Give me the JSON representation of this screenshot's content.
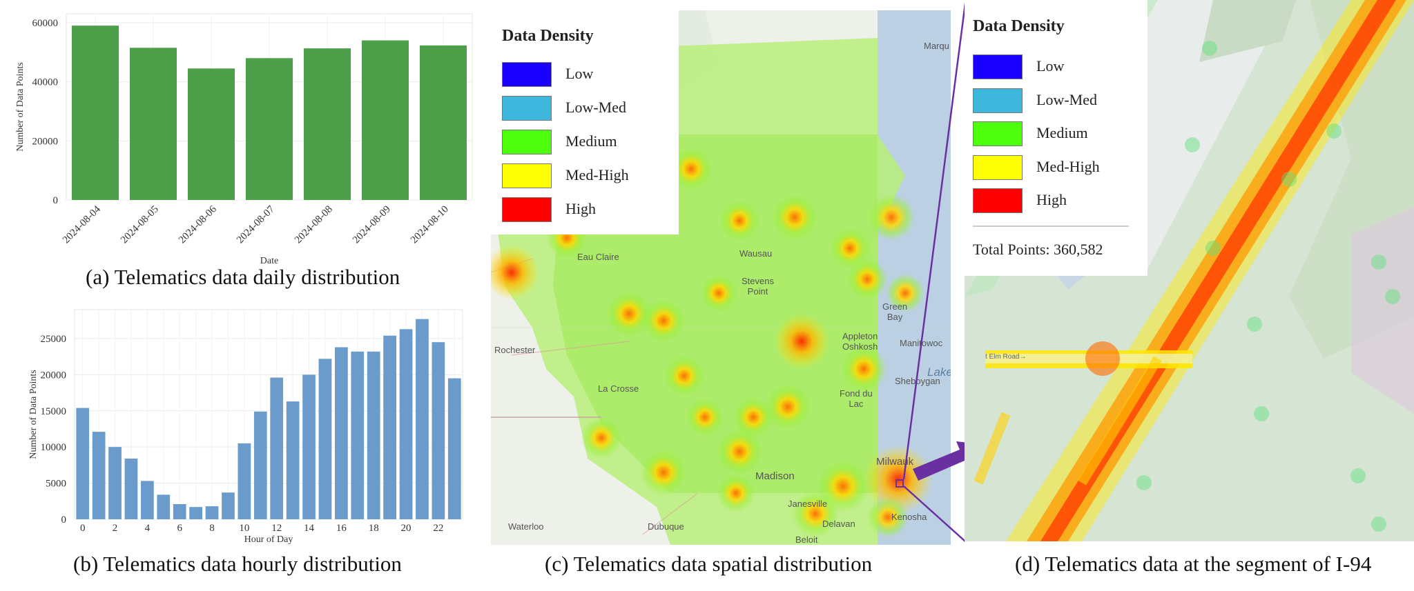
{
  "captions": {
    "a": "(a) Telematics data daily distribution",
    "b": "(b) Telematics data hourly distribution",
    "c": "(c) Telematics data spatial distribution",
    "d": "(d) Telematics data at the segment of I-94"
  },
  "chart_data": [
    {
      "type": "bar",
      "xlabel": "Date",
      "ylabel": "Number of Data Points",
      "categories": [
        "2024-08-04",
        "2024-08-05",
        "2024-08-06",
        "2024-08-07",
        "2024-08-08",
        "2024-08-09",
        "2024-08-10"
      ],
      "values": [
        59000,
        51500,
        44500,
        48000,
        51300,
        54000,
        52300
      ],
      "ylim": [
        0,
        63000
      ],
      "yticks": [
        "0",
        "20000",
        "40000",
        "60000"
      ],
      "color": "#4e9f4a",
      "grid": true
    },
    {
      "type": "bar",
      "xlabel": "Hour of Day",
      "ylabel": "Number of Data Points",
      "categories": [
        "0",
        "1",
        "2",
        "3",
        "4",
        "5",
        "6",
        "7",
        "8",
        "9",
        "10",
        "11",
        "12",
        "13",
        "14",
        "15",
        "16",
        "17",
        "18",
        "19",
        "20",
        "21",
        "22",
        "23"
      ],
      "xticks": [
        "0",
        "2",
        "4",
        "6",
        "8",
        "10",
        "12",
        "14",
        "16",
        "18",
        "20",
        "22"
      ],
      "values": [
        15400,
        12100,
        10000,
        8400,
        5300,
        3400,
        2100,
        1700,
        1800,
        3700,
        10500,
        14900,
        19600,
        16300,
        20000,
        22200,
        23800,
        23200,
        23200,
        25400,
        26300,
        27700,
        24500,
        19500
      ],
      "ylim": [
        0,
        29000
      ],
      "yticks": [
        "0",
        "5000",
        "10000",
        "15000",
        "20000",
        "25000"
      ],
      "color": "#6a9bcb",
      "grid": true
    }
  ],
  "legend": {
    "title": "Data Density",
    "items": [
      {
        "label": "Low",
        "color": "#1a00ff"
      },
      {
        "label": "Low-Med",
        "color": "#3fb6dc"
      },
      {
        "label": "Medium",
        "color": "#4dff0a"
      },
      {
        "label": "Med-High",
        "color": "#ffff05"
      },
      {
        "label": "High",
        "color": "#ff0000"
      }
    ]
  },
  "total_points": "Total Points: 360,582",
  "map_labels": {
    "marq": "Marqu",
    "eau_claire": "Eau Claire",
    "wausau": "Wausau",
    "stevens_point": "Stevens\nPoint",
    "green_bay": "Green\nBay",
    "appleton": "Appleton\nOshkosh",
    "manitowoc": "Manitowoc",
    "rochester": "Rochester",
    "la_crosse": "La Crosse",
    "lake": "Lake",
    "sheboygan": "Sheboygan",
    "fond_du_lac": "Fond du\nLac",
    "madison": "Madison",
    "milwaukee": "Milwauk",
    "janesville": "Janesville",
    "delavan": "Delavan",
    "kenosha": "Kenosha",
    "waterloo": "Waterloo",
    "dubuque": "Dubuque",
    "beloit": "Beloit",
    "elm_road": "t Elm Road→",
    "highway": "94"
  },
  "accent_purple": "#6a2fa0"
}
